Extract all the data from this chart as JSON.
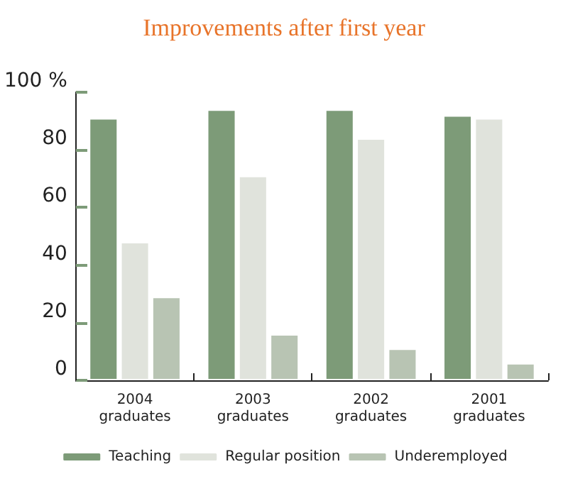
{
  "chart_data": {
    "type": "bar",
    "title": "Improvements after first year",
    "categories": [
      "2004\ngraduates",
      "2003\ngraduates",
      "2002\ngraduates",
      "2001\ngraduates"
    ],
    "series": [
      {
        "name": "Teaching",
        "color": "#7d9b78",
        "values": [
          91,
          94,
          94,
          92
        ]
      },
      {
        "name": "Regular position",
        "color": "#e0e3dc",
        "values": [
          48,
          71,
          84,
          91
        ]
      },
      {
        "name": "Underemployed",
        "color": "#b8c4b3",
        "values": [
          29,
          16,
          11,
          6
        ]
      }
    ],
    "ylim": [
      0,
      100
    ],
    "yticks": [
      0,
      20,
      40,
      60,
      80,
      {
        "value": 100,
        "label": "100 %"
      }
    ],
    "grid": false,
    "legend": "bottom"
  }
}
